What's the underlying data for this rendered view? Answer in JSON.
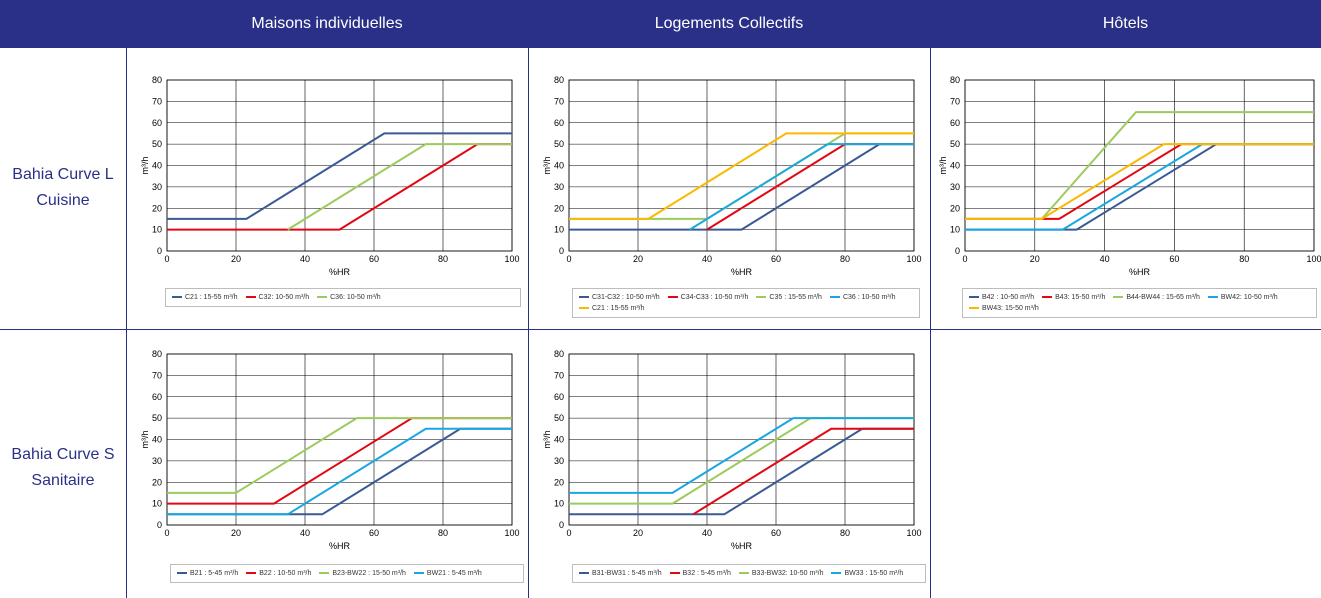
{
  "headers": [
    "Maisons individuelles",
    "Logements Collectifs",
    "Hôtels"
  ],
  "rows": [
    {
      "line1": "Bahia Curve L",
      "line2": "Cuisine"
    },
    {
      "line1": "Bahia Curve S",
      "line2": "Sanitaire"
    }
  ],
  "colors": {
    "header_bg": "#2a3088",
    "dark_blue": "#3a5a94",
    "red": "#e30613",
    "green": "#9ccb5b",
    "cyan": "#1aa7e0",
    "orange": "#fbb800"
  },
  "chart_data": [
    {
      "type": "line",
      "id": "maisons-cuisine",
      "xlabel": "%HR",
      "ylabel": "m³/h",
      "xlim": [
        0,
        100
      ],
      "ylim": [
        0,
        80
      ],
      "xticks": [
        "0",
        "20",
        "40",
        "60",
        "80",
        "100"
      ],
      "yticks": [
        "0",
        "10",
        "20",
        "30",
        "40",
        "50",
        "60",
        "70",
        "80"
      ],
      "grid": true,
      "legend_position": "bottom",
      "series": [
        {
          "name": "C21 : 15-55 m³/h",
          "color": "#3a5a94",
          "x": [
            0,
            23,
            63,
            100
          ],
          "y": [
            15,
            15,
            55,
            55
          ]
        },
        {
          "name": "C32: 10-50 m³/h",
          "color": "#e30613",
          "x": [
            0,
            50,
            90,
            100
          ],
          "y": [
            10,
            10,
            50,
            50
          ]
        },
        {
          "name": "C36: 10-50 m³/h",
          "color": "#9ccb5b",
          "x": [
            35,
            75,
            100
          ],
          "y": [
            10,
            50,
            50
          ]
        }
      ]
    },
    {
      "type": "line",
      "id": "collectifs-cuisine",
      "xlabel": "%HR",
      "ylabel": "m³/h",
      "xlim": [
        0,
        100
      ],
      "ylim": [
        0,
        80
      ],
      "xticks": [
        "0",
        "20",
        "40",
        "60",
        "80",
        "100"
      ],
      "yticks": [
        "0",
        "10",
        "20",
        "30",
        "40",
        "50",
        "60",
        "70",
        "80"
      ],
      "grid": true,
      "legend_position": "bottom",
      "series": [
        {
          "name": "C31-C32 : 10-50 m³/h",
          "color": "#3a5a94",
          "x": [
            0,
            50,
            90,
            100
          ],
          "y": [
            10,
            10,
            50,
            50
          ]
        },
        {
          "name": "C34-C33 : 10-50 m³/h",
          "color": "#e30613",
          "x": [
            40,
            80,
            100
          ],
          "y": [
            10,
            50,
            50
          ]
        },
        {
          "name": "C35 : 15-55 m³/h",
          "color": "#9ccb5b",
          "x": [
            0,
            40,
            80,
            85,
            100
          ],
          "y": [
            15,
            15,
            55,
            55,
            55
          ]
        },
        {
          "name": "C36 : 10-50 m³/h",
          "color": "#1aa7e0",
          "x": [
            35,
            75,
            100
          ],
          "y": [
            10,
            50,
            50
          ]
        },
        {
          "name": "C21 : 15-55 m³/h",
          "color": "#fbb800",
          "x": [
            0,
            23,
            63,
            100
          ],
          "y": [
            15,
            15,
            55,
            55
          ]
        }
      ]
    },
    {
      "type": "line",
      "id": "hotels-cuisine",
      "xlabel": "%HR",
      "ylabel": "m³/h",
      "xlim": [
        0,
        100
      ],
      "ylim": [
        0,
        80
      ],
      "xticks": [
        "0",
        "20",
        "40",
        "60",
        "80",
        "100"
      ],
      "yticks": [
        "0",
        "10",
        "20",
        "30",
        "40",
        "50",
        "60",
        "70",
        "80"
      ],
      "grid": true,
      "legend_position": "bottom",
      "series": [
        {
          "name": "B42 : 10-50 m³/h",
          "color": "#3a5a94",
          "x": [
            0,
            32,
            72,
            100
          ],
          "y": [
            10,
            10,
            50,
            50
          ]
        },
        {
          "name": "B43: 15-50 m³/h",
          "color": "#e30613",
          "x": [
            0,
            27,
            62,
            100
          ],
          "y": [
            15,
            15,
            50,
            50
          ]
        },
        {
          "name": "B44-BW44 : 15-65 m³/h",
          "color": "#9ccb5b",
          "x": [
            0,
            22,
            49,
            100
          ],
          "y": [
            15,
            15,
            65,
            65
          ]
        },
        {
          "name": "BW42: 10-50 m³/h",
          "color": "#1aa7e0",
          "x": [
            0,
            28,
            68,
            100
          ],
          "y": [
            10,
            10,
            50,
            50
          ]
        },
        {
          "name": "BW43: 15-50 m³/h",
          "color": "#fbb800",
          "x": [
            0,
            22,
            57,
            100
          ],
          "y": [
            15,
            15,
            50,
            50
          ]
        }
      ]
    },
    {
      "type": "line",
      "id": "maisons-sanitaire",
      "xlabel": "%HR",
      "ylabel": "m³/h",
      "xlim": [
        0,
        100
      ],
      "ylim": [
        0,
        80
      ],
      "xticks": [
        "0",
        "20",
        "40",
        "60",
        "80",
        "100"
      ],
      "yticks": [
        "0",
        "10",
        "20",
        "30",
        "40",
        "50",
        "60",
        "70",
        "80"
      ],
      "grid": true,
      "legend_position": "bottom",
      "series": [
        {
          "name": "B21 : 5-45 m³/h",
          "color": "#3a5a94",
          "x": [
            0,
            45,
            85,
            100
          ],
          "y": [
            5,
            5,
            45,
            45
          ]
        },
        {
          "name": "B22 : 10-50 m³/h",
          "color": "#e30613",
          "x": [
            0,
            31,
            71,
            100
          ],
          "y": [
            10,
            10,
            50,
            50
          ]
        },
        {
          "name": "B23-BW22 : 15-50 m³/h",
          "color": "#9ccb5b",
          "x": [
            0,
            20,
            55,
            100
          ],
          "y": [
            15,
            15,
            50,
            50
          ]
        },
        {
          "name": "BW21 : 5-45 m³/h",
          "color": "#1aa7e0",
          "x": [
            0,
            35,
            75,
            100
          ],
          "y": [
            5,
            5,
            45,
            45
          ]
        }
      ]
    },
    {
      "type": "line",
      "id": "collectifs-sanitaire",
      "xlabel": "%HR",
      "ylabel": "m³/h",
      "xlim": [
        0,
        100
      ],
      "ylim": [
        0,
        80
      ],
      "xticks": [
        "0",
        "20",
        "40",
        "60",
        "80",
        "100"
      ],
      "yticks": [
        "0",
        "10",
        "20",
        "30",
        "40",
        "50",
        "60",
        "70",
        "80"
      ],
      "grid": true,
      "legend_position": "bottom",
      "series": [
        {
          "name": "B31-BW31 : 5-45 m³/h",
          "color": "#3a5a94",
          "x": [
            0,
            45,
            85,
            100
          ],
          "y": [
            5,
            5,
            45,
            45
          ]
        },
        {
          "name": "B32 : 5-45 m³/h",
          "color": "#e30613",
          "x": [
            36,
            76,
            100
          ],
          "y": [
            5,
            45,
            45
          ]
        },
        {
          "name": "B33-BW32: 10-50 m³/h",
          "color": "#9ccb5b",
          "x": [
            0,
            30,
            70,
            100
          ],
          "y": [
            10,
            10,
            50,
            50
          ]
        },
        {
          "name": "BW33 : 15-50 m³/h",
          "color": "#1aa7e0",
          "x": [
            0,
            30,
            65,
            100
          ],
          "y": [
            15,
            15,
            50,
            50
          ]
        }
      ]
    }
  ]
}
